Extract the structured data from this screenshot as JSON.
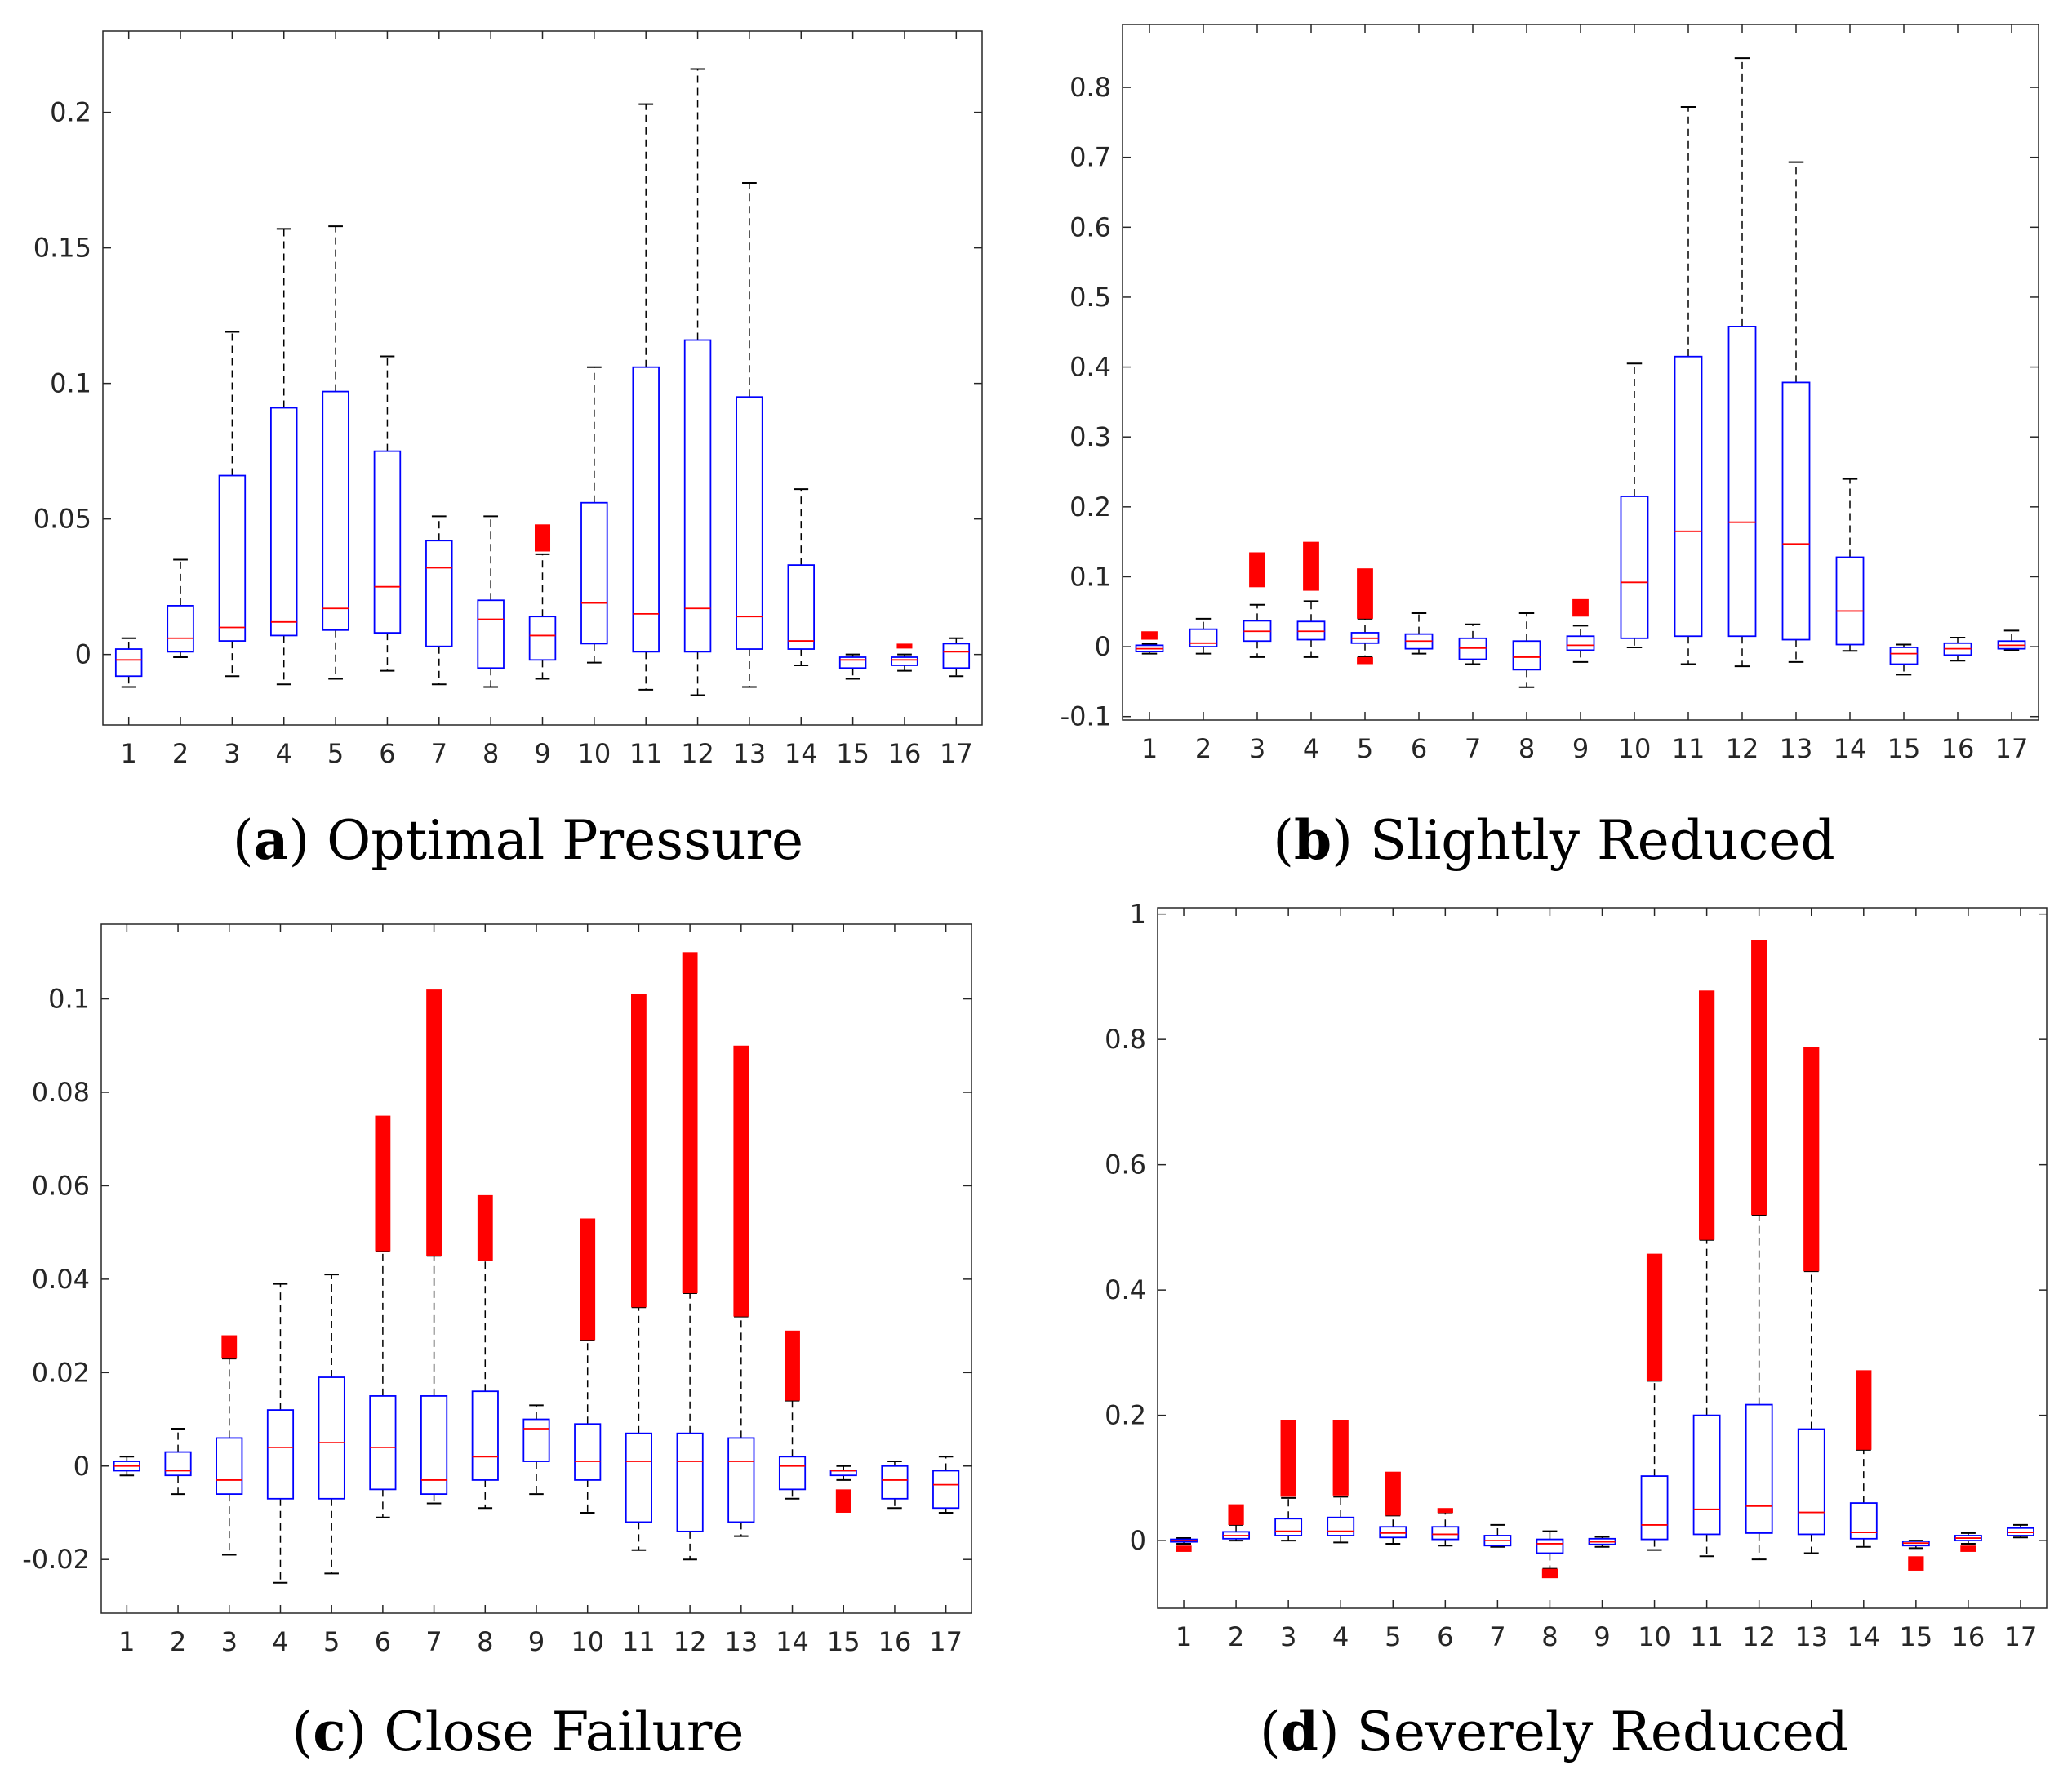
{
  "colors": {
    "box": "#0000ff",
    "median": "#ff0000",
    "outlier": "#ff0000",
    "whisker": "#000000",
    "axis": "#262626"
  },
  "chart_data": [
    {
      "type": "boxplot",
      "caption_tag": "a",
      "caption_text": "Optimal Pressure",
      "categories": [
        "1",
        "2",
        "3",
        "4",
        "5",
        "6",
        "7",
        "8",
        "9",
        "10",
        "11",
        "12",
        "13",
        "14",
        "15",
        "16",
        "17"
      ],
      "ylim": [
        -0.026,
        0.23
      ],
      "yticks": [
        0,
        0.05,
        0.1,
        0.15,
        0.2
      ],
      "ytick_labels": [
        "0",
        "0.05",
        "0.1",
        "0.15",
        "0.2"
      ],
      "boxes": [
        {
          "low": -0.012,
          "q1": -0.008,
          "median": -0.002,
          "q3": 0.002,
          "high": 0.006
        },
        {
          "low": -0.001,
          "q1": 0.001,
          "median": 0.006,
          "q3": 0.018,
          "high": 0.035
        },
        {
          "low": -0.008,
          "q1": 0.005,
          "median": 0.01,
          "q3": 0.066,
          "high": 0.119
        },
        {
          "low": -0.011,
          "q1": 0.007,
          "median": 0.012,
          "q3": 0.091,
          "high": 0.157
        },
        {
          "low": -0.009,
          "q1": 0.009,
          "median": 0.017,
          "q3": 0.097,
          "high": 0.158
        },
        {
          "low": -0.006,
          "q1": 0.008,
          "median": 0.025,
          "q3": 0.075,
          "high": 0.11
        },
        {
          "low": -0.011,
          "q1": 0.003,
          "median": 0.032,
          "q3": 0.042,
          "high": 0.051
        },
        {
          "low": -0.012,
          "q1": -0.005,
          "median": 0.013,
          "q3": 0.02,
          "high": 0.051
        },
        {
          "low": -0.009,
          "q1": -0.002,
          "median": 0.007,
          "q3": 0.014,
          "high": 0.037
        },
        {
          "low": -0.003,
          "q1": 0.004,
          "median": 0.019,
          "q3": 0.056,
          "high": 0.106
        },
        {
          "low": -0.013,
          "q1": 0.001,
          "median": 0.015,
          "q3": 0.106,
          "high": 0.203
        },
        {
          "low": -0.015,
          "q1": 0.001,
          "median": 0.017,
          "q3": 0.116,
          "high": 0.216
        },
        {
          "low": -0.012,
          "q1": 0.002,
          "median": 0.014,
          "q3": 0.095,
          "high": 0.174
        },
        {
          "low": -0.004,
          "q1": 0.002,
          "median": 0.005,
          "q3": 0.033,
          "high": 0.061
        },
        {
          "low": -0.009,
          "q1": -0.005,
          "median": -0.002,
          "q3": -0.001,
          "high": 0.0
        },
        {
          "low": -0.006,
          "q1": -0.004,
          "median": -0.002,
          "q3": -0.001,
          "high": 0.0
        },
        {
          "low": -0.008,
          "q1": -0.005,
          "median": 0.001,
          "q3": 0.004,
          "high": 0.006
        }
      ],
      "outliers": [
        {
          "cat": 9,
          "from": 0.038,
          "to": 0.048
        },
        {
          "cat": 16,
          "from": 0.003,
          "to": 0.004
        }
      ]
    },
    {
      "type": "boxplot",
      "caption_tag": "b",
      "caption_text": "Slightly Reduced",
      "categories": [
        "1",
        "2",
        "3",
        "4",
        "5",
        "6",
        "7",
        "8",
        "9",
        "10",
        "11",
        "12",
        "13",
        "14",
        "15",
        "16",
        "17"
      ],
      "ylim": [
        -0.105,
        0.89
      ],
      "yticks": [
        -0.1,
        0,
        0.1,
        0.2,
        0.3,
        0.4,
        0.5,
        0.6,
        0.7,
        0.8
      ],
      "ytick_labels": [
        "-0.1",
        "0",
        "0.1",
        "0.2",
        "0.3",
        "0.4",
        "0.5",
        "0.6",
        "0.7",
        "0.8"
      ],
      "boxes": [
        {
          "low": -0.01,
          "q1": -0.007,
          "median": -0.003,
          "q3": 0.002,
          "high": 0.004
        },
        {
          "low": -0.01,
          "q1": 0.0,
          "median": 0.005,
          "q3": 0.025,
          "high": 0.04
        },
        {
          "low": -0.015,
          "q1": 0.008,
          "median": 0.022,
          "q3": 0.037,
          "high": 0.06
        },
        {
          "low": -0.015,
          "q1": 0.01,
          "median": 0.022,
          "q3": 0.036,
          "high": 0.065
        },
        {
          "low": -0.015,
          "q1": 0.005,
          "median": 0.012,
          "q3": 0.02,
          "high": 0.04
        },
        {
          "low": -0.01,
          "q1": -0.003,
          "median": 0.008,
          "q3": 0.018,
          "high": 0.048
        },
        {
          "low": -0.025,
          "q1": -0.018,
          "median": -0.002,
          "q3": 0.012,
          "high": 0.032
        },
        {
          "low": -0.058,
          "q1": -0.033,
          "median": -0.015,
          "q3": 0.008,
          "high": 0.048
        },
        {
          "low": -0.022,
          "q1": -0.005,
          "median": 0.002,
          "q3": 0.015,
          "high": 0.03
        },
        {
          "low": -0.001,
          "q1": 0.012,
          "median": 0.092,
          "q3": 0.215,
          "high": 0.405
        },
        {
          "low": -0.025,
          "q1": 0.015,
          "median": 0.165,
          "q3": 0.415,
          "high": 0.772
        },
        {
          "low": -0.028,
          "q1": 0.015,
          "median": 0.178,
          "q3": 0.458,
          "high": 0.842
        },
        {
          "low": -0.022,
          "q1": 0.01,
          "median": 0.147,
          "q3": 0.378,
          "high": 0.693
        },
        {
          "low": -0.006,
          "q1": 0.003,
          "median": 0.051,
          "q3": 0.128,
          "high": 0.24
        },
        {
          "low": -0.04,
          "q1": -0.025,
          "median": -0.01,
          "q3": -0.001,
          "high": 0.003
        },
        {
          "low": -0.02,
          "q1": -0.012,
          "median": -0.003,
          "q3": 0.005,
          "high": 0.013
        },
        {
          "low": -0.005,
          "q1": -0.003,
          "median": 0.002,
          "q3": 0.008,
          "high": 0.023
        }
      ],
      "outliers": [
        {
          "cat": 1,
          "from": 0.01,
          "to": 0.022
        },
        {
          "cat": 3,
          "from": 0.085,
          "to": 0.135
        },
        {
          "cat": 4,
          "from": 0.08,
          "to": 0.15
        },
        {
          "cat": 5,
          "from": 0.04,
          "to": 0.112
        },
        {
          "cat": 5,
          "from": -0.025,
          "to": -0.015
        },
        {
          "cat": 9,
          "from": 0.043,
          "to": 0.068
        }
      ]
    },
    {
      "type": "boxplot",
      "caption_tag": "c",
      "caption_text": "Close Failure",
      "categories": [
        "1",
        "2",
        "3",
        "4",
        "5",
        "6",
        "7",
        "8",
        "9",
        "10",
        "11",
        "12",
        "13",
        "14",
        "15",
        "16",
        "17"
      ],
      "ylim": [
        -0.0315,
        0.116
      ],
      "yticks": [
        -0.02,
        0,
        0.02,
        0.04,
        0.06,
        0.08,
        0.1
      ],
      "ytick_labels": [
        "-0.02",
        "0",
        "0.02",
        "0.04",
        "0.06",
        "0.08",
        "0.1"
      ],
      "boxes": [
        {
          "low": -0.002,
          "q1": -0.001,
          "median": 0.0,
          "q3": 0.001,
          "high": 0.002
        },
        {
          "low": -0.006,
          "q1": -0.002,
          "median": -0.001,
          "q3": 0.003,
          "high": 0.008
        },
        {
          "low": -0.019,
          "q1": -0.006,
          "median": -0.003,
          "q3": 0.006,
          "high": 0.023
        },
        {
          "low": -0.025,
          "q1": -0.007,
          "median": 0.004,
          "q3": 0.012,
          "high": 0.039
        },
        {
          "low": -0.023,
          "q1": -0.007,
          "median": 0.005,
          "q3": 0.019,
          "high": 0.041
        },
        {
          "low": -0.011,
          "q1": -0.005,
          "median": 0.004,
          "q3": 0.015,
          "high": 0.046
        },
        {
          "low": -0.008,
          "q1": -0.006,
          "median": -0.003,
          "q3": 0.015,
          "high": 0.045
        },
        {
          "low": -0.009,
          "q1": -0.003,
          "median": 0.002,
          "q3": 0.016,
          "high": 0.044
        },
        {
          "low": -0.006,
          "q1": 0.001,
          "median": 0.008,
          "q3": 0.01,
          "high": 0.013
        },
        {
          "low": -0.01,
          "q1": -0.003,
          "median": 0.001,
          "q3": 0.009,
          "high": 0.027
        },
        {
          "low": -0.018,
          "q1": -0.012,
          "median": 0.001,
          "q3": 0.007,
          "high": 0.034
        },
        {
          "low": -0.02,
          "q1": -0.014,
          "median": 0.001,
          "q3": 0.007,
          "high": 0.037
        },
        {
          "low": -0.015,
          "q1": -0.012,
          "median": 0.001,
          "q3": 0.006,
          "high": 0.032
        },
        {
          "low": -0.007,
          "q1": -0.005,
          "median": 0.0,
          "q3": 0.002,
          "high": 0.014
        },
        {
          "low": -0.003,
          "q1": -0.002,
          "median": -0.001,
          "q3": -0.001,
          "high": 0.0
        },
        {
          "low": -0.009,
          "q1": -0.007,
          "median": -0.003,
          "q3": 0.0,
          "high": 0.001
        },
        {
          "low": -0.01,
          "q1": -0.009,
          "median": -0.004,
          "q3": -0.001,
          "high": 0.002
        }
      ],
      "outliers": [
        {
          "cat": 3,
          "from": 0.023,
          "to": 0.028
        },
        {
          "cat": 6,
          "from": 0.046,
          "to": 0.075
        },
        {
          "cat": 7,
          "from": 0.045,
          "to": 0.102
        },
        {
          "cat": 8,
          "from": 0.044,
          "to": 0.058
        },
        {
          "cat": 10,
          "from": 0.027,
          "to": 0.053
        },
        {
          "cat": 11,
          "from": 0.034,
          "to": 0.101
        },
        {
          "cat": 12,
          "from": 0.037,
          "to": 0.11
        },
        {
          "cat": 13,
          "from": 0.032,
          "to": 0.09
        },
        {
          "cat": 14,
          "from": 0.014,
          "to": 0.029
        },
        {
          "cat": 15,
          "from": -0.01,
          "to": -0.005
        }
      ]
    },
    {
      "type": "boxplot",
      "caption_tag": "d",
      "caption_text": "Severely Reduced",
      "categories": [
        "1",
        "2",
        "3",
        "4",
        "5",
        "6",
        "7",
        "8",
        "9",
        "10",
        "11",
        "12",
        "13",
        "14",
        "15",
        "16",
        "17"
      ],
      "ylim": [
        -0.108,
        1.01
      ],
      "yticks": [
        0,
        0.2,
        0.4,
        0.6,
        0.8,
        1
      ],
      "ytick_labels": [
        "0",
        "0.2",
        "0.4",
        "0.6",
        "0.8",
        "1"
      ],
      "boxes": [
        {
          "low": -0.005,
          "q1": -0.002,
          "median": 0.0,
          "q3": 0.002,
          "high": 0.004
        },
        {
          "low": 0.0,
          "q1": 0.003,
          "median": 0.008,
          "q3": 0.014,
          "high": 0.025
        },
        {
          "low": 0.0,
          "q1": 0.008,
          "median": 0.015,
          "q3": 0.035,
          "high": 0.068
        },
        {
          "low": -0.003,
          "q1": 0.008,
          "median": 0.015,
          "q3": 0.037,
          "high": 0.07
        },
        {
          "low": -0.005,
          "q1": 0.005,
          "median": 0.012,
          "q3": 0.022,
          "high": 0.04
        },
        {
          "low": -0.008,
          "q1": 0.002,
          "median": 0.01,
          "q3": 0.022,
          "high": 0.045
        },
        {
          "low": -0.01,
          "q1": -0.008,
          "median": 0.0,
          "q3": 0.008,
          "high": 0.025
        },
        {
          "low": -0.045,
          "q1": -0.02,
          "median": -0.005,
          "q3": 0.002,
          "high": 0.015
        },
        {
          "low": -0.01,
          "q1": -0.006,
          "median": -0.002,
          "q3": 0.003,
          "high": 0.006
        },
        {
          "low": -0.015,
          "q1": 0.002,
          "median": 0.025,
          "q3": 0.103,
          "high": 0.255
        },
        {
          "low": -0.025,
          "q1": 0.01,
          "median": 0.05,
          "q3": 0.2,
          "high": 0.48
        },
        {
          "low": -0.03,
          "q1": 0.012,
          "median": 0.055,
          "q3": 0.217,
          "high": 0.52
        },
        {
          "low": -0.02,
          "q1": 0.01,
          "median": 0.045,
          "q3": 0.178,
          "high": 0.43
        },
        {
          "low": -0.01,
          "q1": 0.003,
          "median": 0.013,
          "q3": 0.06,
          "high": 0.145
        },
        {
          "low": -0.012,
          "q1": -0.008,
          "median": -0.004,
          "q3": -0.001,
          "high": 0.0
        },
        {
          "low": -0.005,
          "q1": 0.0,
          "median": 0.004,
          "q3": 0.008,
          "high": 0.012
        },
        {
          "low": 0.005,
          "q1": 0.008,
          "median": 0.013,
          "q3": 0.02,
          "high": 0.025
        }
      ],
      "outliers": [
        {
          "cat": 1,
          "from": -0.018,
          "to": -0.008
        },
        {
          "cat": 2,
          "from": 0.025,
          "to": 0.058
        },
        {
          "cat": 3,
          "from": 0.07,
          "to": 0.193
        },
        {
          "cat": 4,
          "from": 0.072,
          "to": 0.193
        },
        {
          "cat": 5,
          "from": 0.04,
          "to": 0.11
        },
        {
          "cat": 6,
          "from": 0.045,
          "to": 0.052
        },
        {
          "cat": 8,
          "from": -0.06,
          "to": -0.045
        },
        {
          "cat": 10,
          "from": 0.255,
          "to": 0.458
        },
        {
          "cat": 11,
          "from": 0.48,
          "to": 0.878
        },
        {
          "cat": 12,
          "from": 0.52,
          "to": 0.958
        },
        {
          "cat": 13,
          "from": 0.43,
          "to": 0.788
        },
        {
          "cat": 14,
          "from": 0.145,
          "to": 0.272
        },
        {
          "cat": 15,
          "from": -0.048,
          "to": -0.025
        },
        {
          "cat": 16,
          "from": -0.018,
          "to": -0.008
        }
      ]
    }
  ]
}
